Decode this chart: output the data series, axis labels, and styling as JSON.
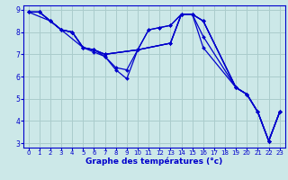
{
  "title": "Graphe des températures (°c)",
  "background_color": "#cce8e8",
  "grid_color": "#aacccc",
  "line_color": "#0000cc",
  "xlim": [
    -0.5,
    23.5
  ],
  "ylim": [
    2.8,
    9.2
  ],
  "yticks": [
    3,
    4,
    5,
    6,
    7,
    8,
    9
  ],
  "xticks": [
    0,
    1,
    2,
    3,
    4,
    5,
    6,
    7,
    8,
    9,
    10,
    11,
    12,
    13,
    14,
    15,
    16,
    17,
    18,
    19,
    20,
    21,
    22,
    23
  ],
  "lines": [
    {
      "x": [
        0,
        1,
        2,
        3,
        4,
        5,
        6,
        7,
        10,
        13,
        14,
        15,
        16,
        19,
        20,
        21,
        22,
        23
      ],
      "y": [
        8.9,
        8.9,
        8.5,
        8.1,
        8.0,
        7.3,
        7.2,
        7.0,
        7.2,
        7.5,
        8.8,
        8.8,
        8.5,
        5.5,
        5.2,
        4.4,
        3.1,
        4.4
      ]
    },
    {
      "x": [
        0,
        1,
        2,
        3,
        4,
        5,
        6,
        7,
        10,
        13,
        14,
        15,
        16,
        19,
        20,
        21,
        22,
        23
      ],
      "y": [
        8.9,
        8.9,
        8.5,
        8.1,
        8.0,
        7.3,
        7.2,
        7.0,
        7.2,
        7.5,
        8.8,
        8.8,
        7.8,
        5.5,
        5.2,
        4.4,
        3.1,
        4.4
      ]
    },
    {
      "x": [
        0,
        1,
        2,
        3,
        4,
        5,
        6,
        7,
        10,
        13,
        14,
        15,
        16,
        19,
        20,
        21,
        22,
        23
      ],
      "y": [
        8.9,
        8.9,
        8.5,
        8.1,
        8.0,
        7.3,
        7.2,
        7.0,
        7.2,
        7.5,
        8.8,
        8.8,
        7.3,
        5.5,
        5.2,
        4.4,
        3.1,
        4.4
      ]
    },
    {
      "x": [
        0,
        1,
        3,
        5,
        6,
        7,
        8,
        9,
        10,
        11,
        12,
        13,
        14,
        15,
        16,
        19,
        20,
        21,
        22,
        23
      ],
      "y": [
        8.9,
        8.9,
        8.1,
        7.3,
        7.2,
        6.9,
        6.4,
        6.3,
        7.2,
        8.1,
        8.2,
        8.3,
        8.8,
        8.8,
        8.5,
        5.5,
        5.2,
        4.4,
        3.1,
        4.4
      ]
    },
    {
      "x": [
        0,
        2,
        3,
        4,
        5,
        6,
        7,
        8,
        9,
        10,
        11,
        12,
        13,
        14,
        15,
        16,
        19,
        20,
        21,
        22,
        23
      ],
      "y": [
        8.9,
        8.5,
        8.1,
        8.0,
        7.3,
        7.1,
        6.9,
        6.3,
        5.9,
        7.2,
        8.1,
        8.2,
        8.3,
        8.8,
        8.8,
        8.5,
        5.5,
        5.2,
        4.4,
        3.1,
        4.4
      ]
    }
  ]
}
